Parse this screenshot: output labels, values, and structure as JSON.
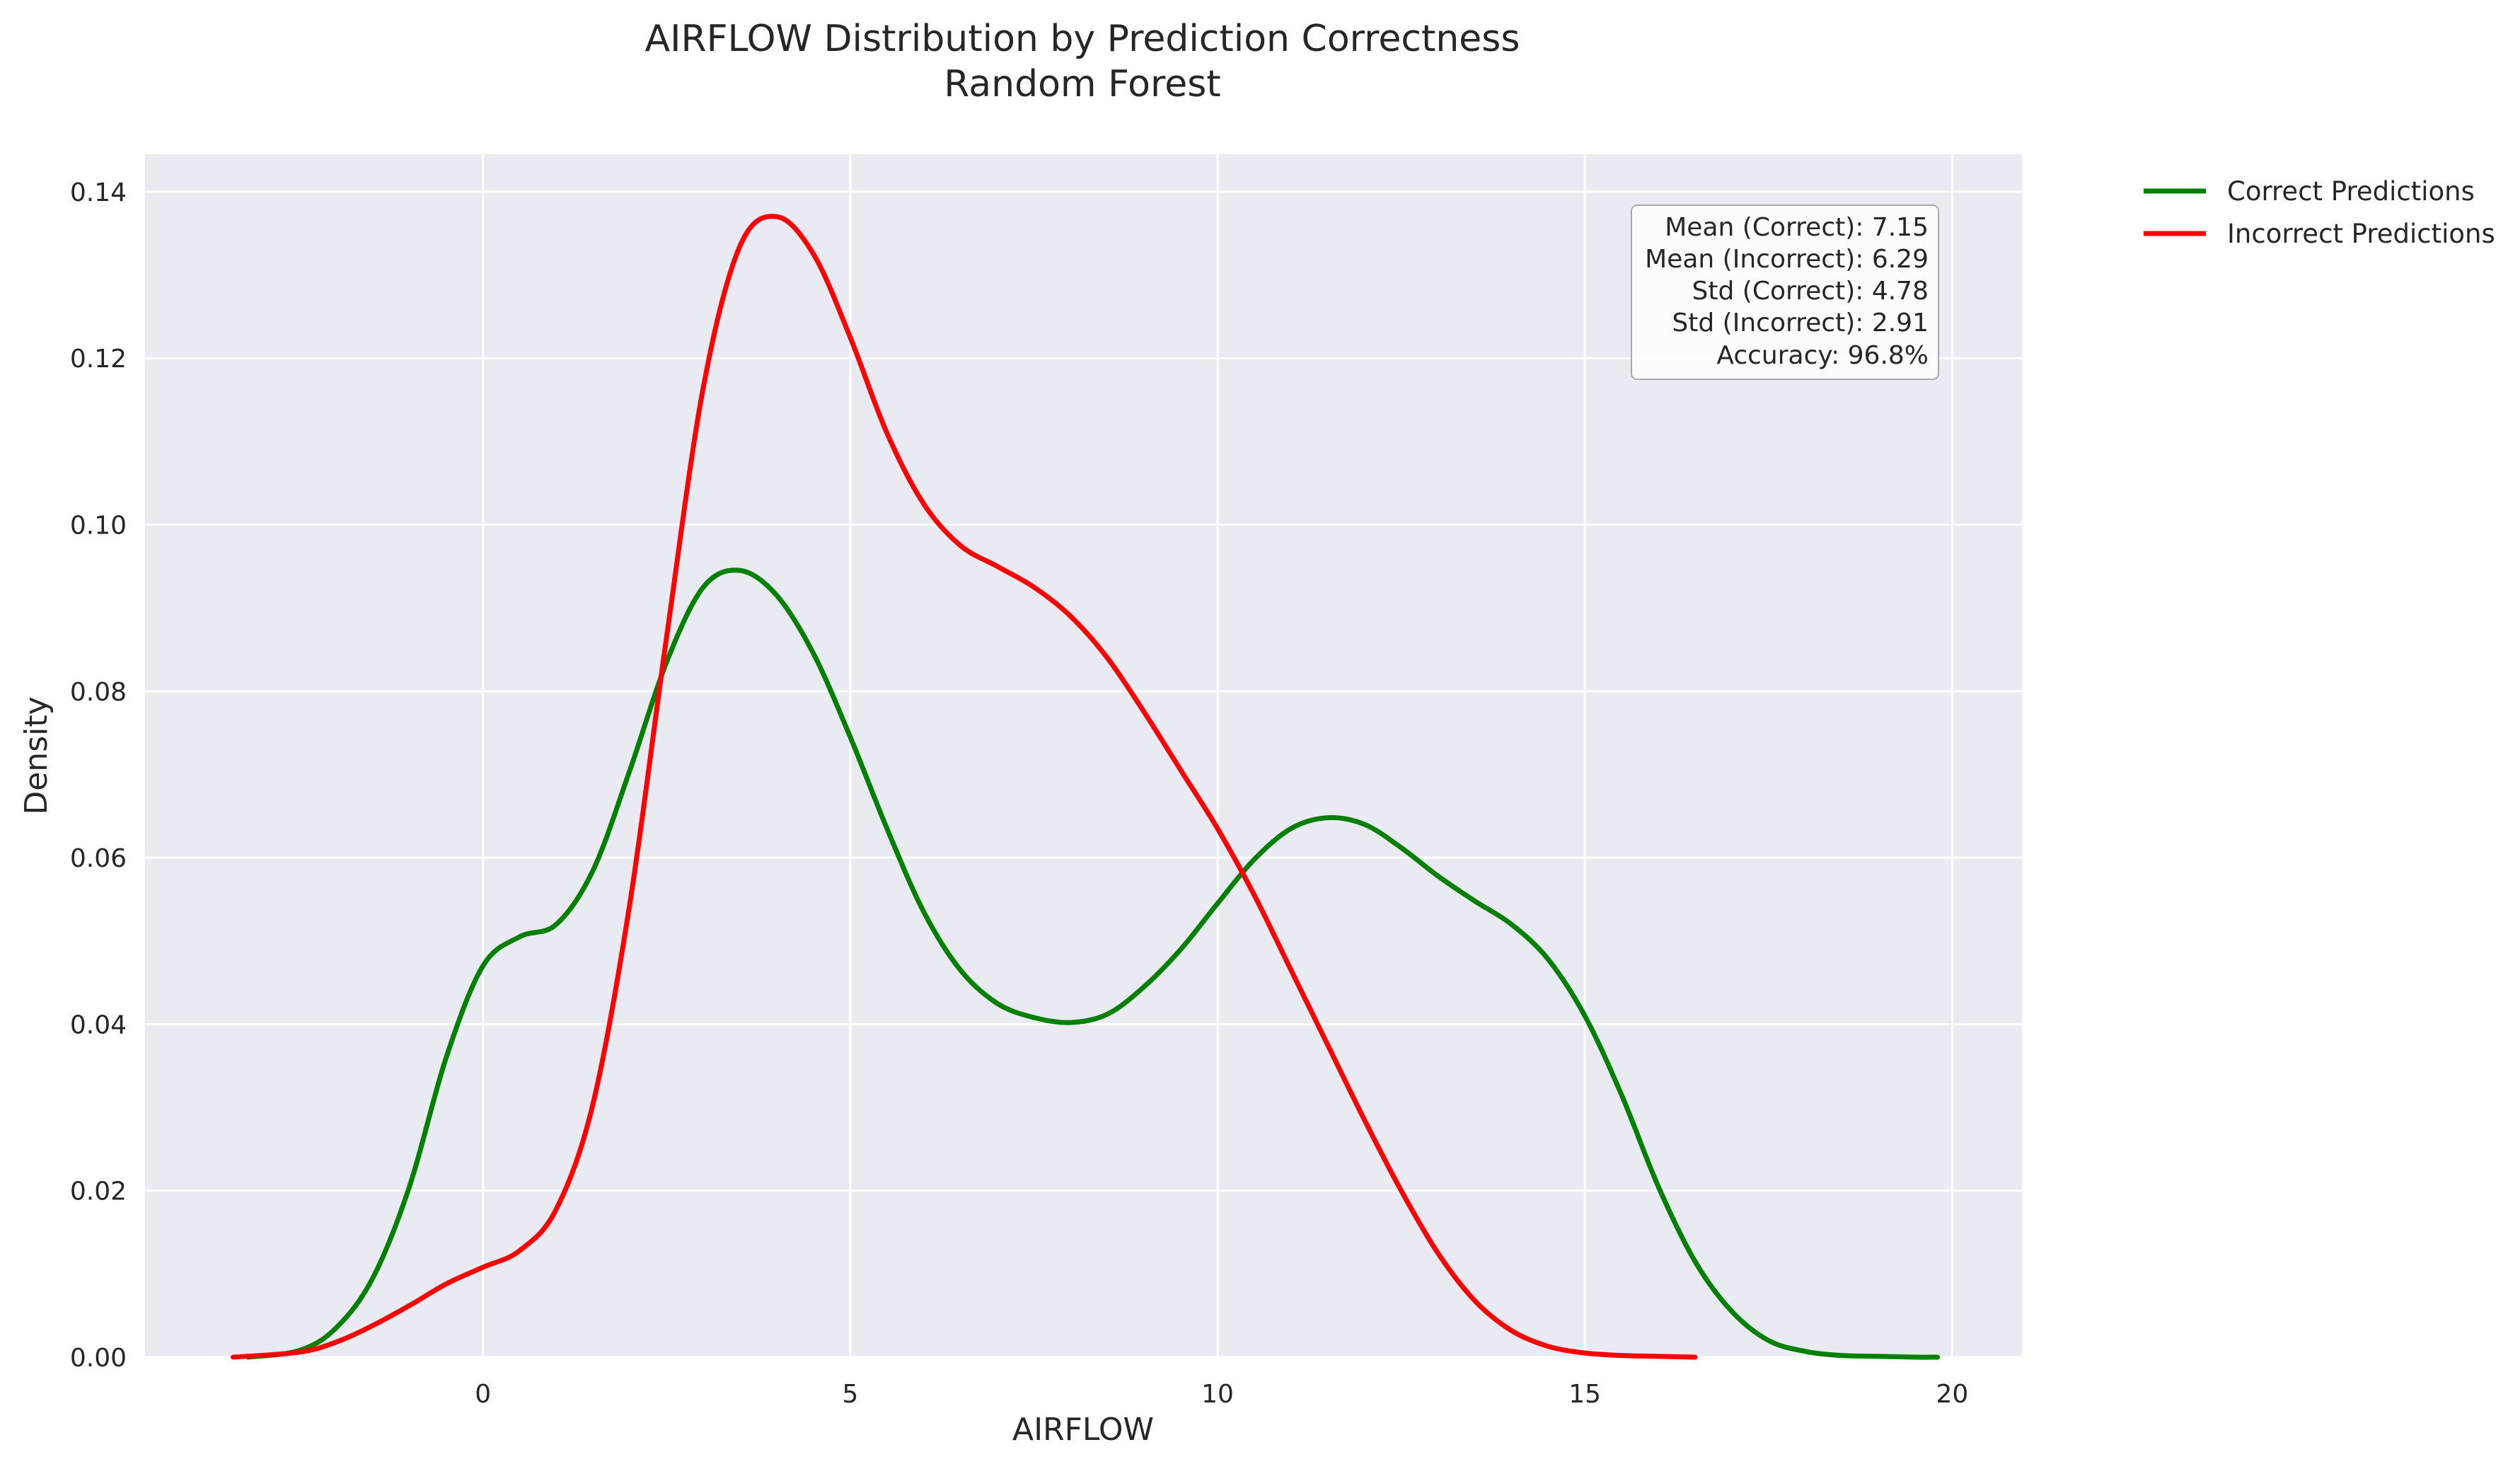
{
  "chart_data": {
    "type": "line",
    "title": "AIRFLOW Distribution by Prediction Correctness",
    "subtitle": "Random Forest",
    "xlabel": "AIRFLOW",
    "ylabel": "Density",
    "xlim": [
      -4.6,
      20.95
    ],
    "ylim": [
      0,
      0.1445
    ],
    "x_ticks": [
      0,
      5,
      10,
      15,
      20
    ],
    "x_tick_labels": [
      "0",
      "5",
      "10",
      "15",
      "20"
    ],
    "y_ticks": [
      0.0,
      0.02,
      0.04,
      0.06,
      0.08,
      0.1,
      0.12,
      0.14
    ],
    "y_tick_labels": [
      "0.00",
      "0.02",
      "0.04",
      "0.06",
      "0.08",
      "0.10",
      "0.12",
      "0.14"
    ],
    "grid": true,
    "legend_placement": "outside upper-right",
    "background_color": "#EAEAF2",
    "grid_color": "#FFFFFF",
    "series": [
      {
        "name": "Correct Predictions",
        "color": "#008000",
        "x": [
          -3.2,
          -2.5,
          -2.0,
          -1.5,
          -1.0,
          -0.5,
          0.0,
          0.5,
          1.0,
          1.5,
          2.0,
          2.5,
          3.0,
          3.5,
          4.0,
          4.5,
          5.0,
          5.5,
          6.0,
          6.5,
          7.0,
          7.5,
          8.0,
          8.5,
          9.0,
          9.5,
          10.0,
          10.5,
          11.0,
          11.5,
          12.0,
          12.5,
          13.0,
          13.5,
          14.0,
          14.5,
          15.0,
          15.5,
          16.0,
          16.5,
          17.0,
          17.5,
          18.0,
          18.5,
          19.0,
          19.5,
          19.8
        ],
        "y": [
          0.0,
          0.0008,
          0.0035,
          0.0095,
          0.0205,
          0.036,
          0.047,
          0.0505,
          0.052,
          0.0585,
          0.0705,
          0.0835,
          0.0925,
          0.0945,
          0.0915,
          0.0845,
          0.0745,
          0.0635,
          0.0535,
          0.0465,
          0.0425,
          0.0408,
          0.0402,
          0.0412,
          0.0445,
          0.049,
          0.0545,
          0.0598,
          0.0635,
          0.0648,
          0.064,
          0.0612,
          0.0578,
          0.0548,
          0.052,
          0.0478,
          0.041,
          0.0315,
          0.0205,
          0.0115,
          0.0055,
          0.002,
          0.0007,
          0.0002,
          0.0001,
          0.0,
          0.0
        ]
      },
      {
        "name": "Incorrect Predictions",
        "color": "#FF0000",
        "x": [
          -3.4,
          -2.5,
          -2.0,
          -1.5,
          -1.0,
          -0.5,
          0.0,
          0.5,
          1.0,
          1.5,
          2.0,
          2.5,
          3.0,
          3.5,
          4.0,
          4.5,
          5.0,
          5.5,
          6.0,
          6.5,
          7.0,
          7.5,
          8.0,
          8.5,
          9.0,
          9.5,
          10.0,
          10.5,
          11.0,
          11.5,
          12.0,
          12.5,
          13.0,
          13.5,
          14.0,
          14.5,
          15.0,
          15.5,
          16.0,
          16.5
        ],
        "y": [
          0.0,
          0.0006,
          0.0018,
          0.0038,
          0.0062,
          0.0088,
          0.0108,
          0.0128,
          0.0178,
          0.0305,
          0.0545,
          0.0865,
          0.1165,
          0.1335,
          0.137,
          0.1325,
          0.1225,
          0.111,
          0.1025,
          0.0975,
          0.095,
          0.0925,
          0.089,
          0.084,
          0.0775,
          0.0705,
          0.0635,
          0.0555,
          0.0465,
          0.0375,
          0.0285,
          0.02,
          0.0125,
          0.0068,
          0.0032,
          0.0013,
          0.0005,
          0.0002,
          0.0001,
          0.0
        ]
      }
    ],
    "annotation": [
      "Mean (Correct): 7.15",
      "Mean (Incorrect): 6.29",
      "Std (Correct): 4.78",
      "Std (Incorrect): 2.91",
      "Accuracy: 96.8%"
    ]
  }
}
